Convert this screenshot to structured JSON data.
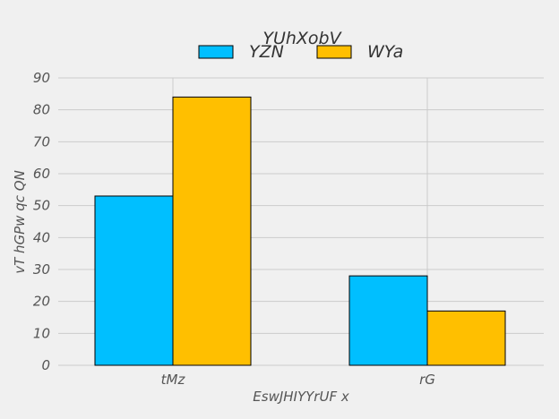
{
  "chart_data": {
    "type": "bar",
    "title": "YUhXobV",
    "xlabel": "EswJHIYYrUF x",
    "ylabel": "vT hGPw qc QN",
    "categories": [
      "tMz",
      "rG"
    ],
    "series": [
      {
        "name": "YZN",
        "values": [
          53,
          28
        ],
        "color": "#00bfff"
      },
      {
        "name": "WYa",
        "values": [
          84,
          17
        ],
        "color": "#ffbf00"
      }
    ],
    "ylim": [
      0,
      90
    ],
    "yticks": [
      0,
      10,
      20,
      30,
      40,
      50,
      60,
      70,
      80,
      90
    ],
    "grid": true,
    "legend_position": "top-center"
  }
}
